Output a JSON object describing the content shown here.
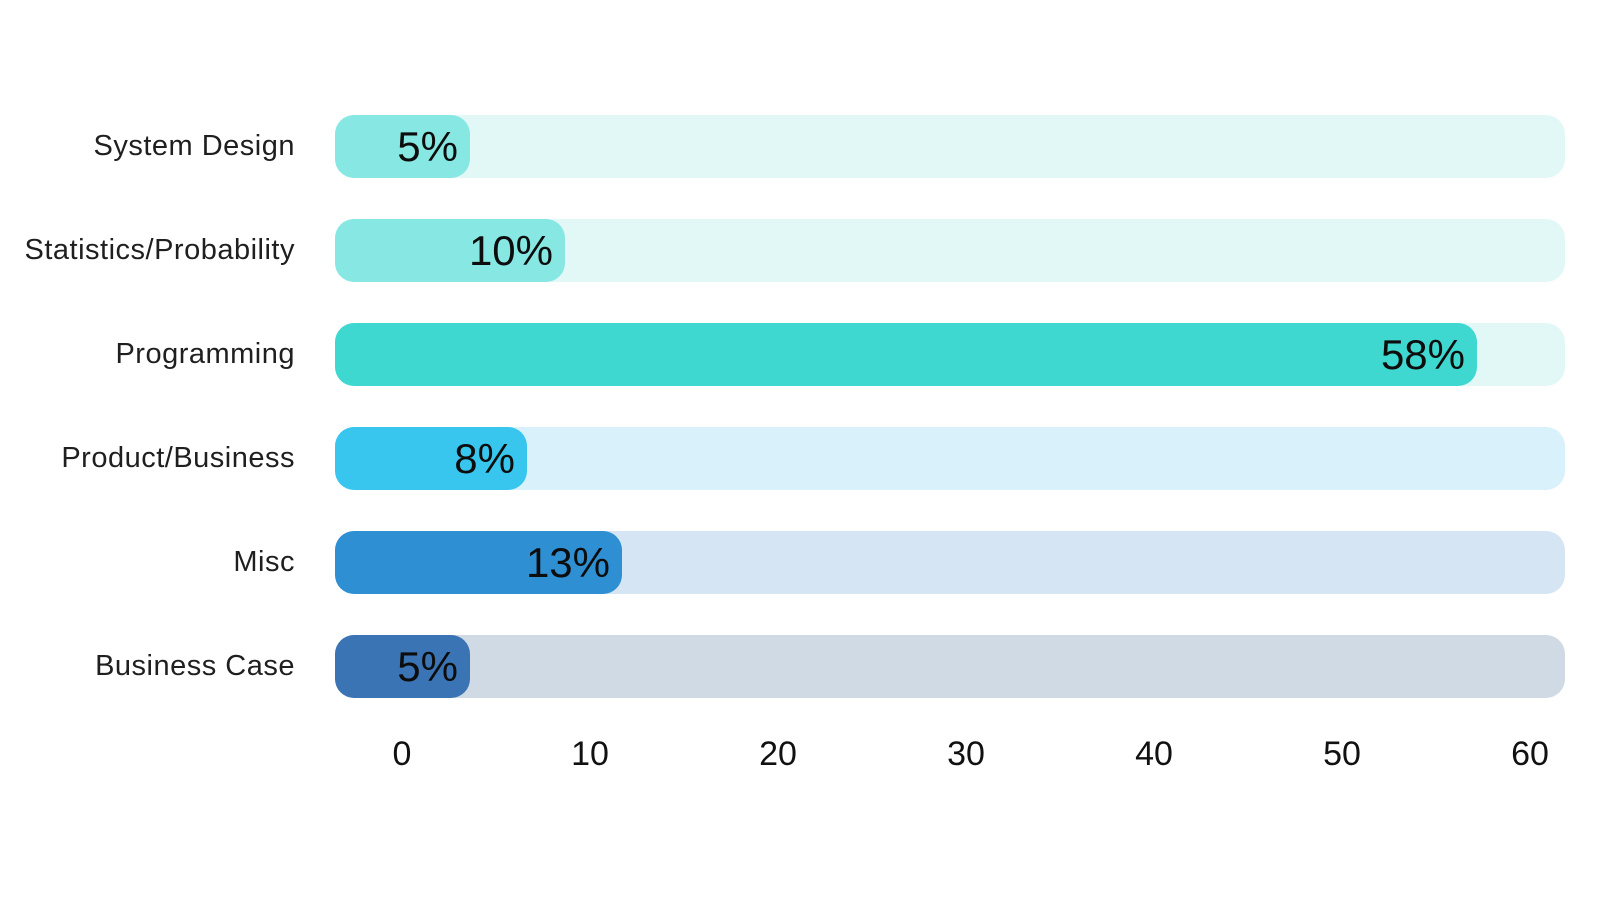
{
  "chart_data": {
    "type": "bar",
    "orientation": "horizontal",
    "title": "",
    "xlabel": "",
    "ylabel": "",
    "xlim": [
      0,
      60
    ],
    "x_ticks": [
      "0",
      "10",
      "20",
      "30",
      "40",
      "50",
      "60"
    ],
    "grid": false,
    "legend": false,
    "categories": [
      "System Design",
      "Statistics/Probability",
      "Programming",
      "Product/Business",
      "Misc",
      "Business Case"
    ],
    "values": [
      5,
      10,
      58,
      8,
      13,
      5
    ],
    "rows": [
      {
        "label": "System Design",
        "value": 5,
        "value_label": "5%",
        "fill_color": "#87E8E3",
        "track_color": "#E2F8F6"
      },
      {
        "label": "Statistics/Probability",
        "value": 10,
        "value_label": "10%",
        "fill_color": "#87E8E3",
        "track_color": "#E2F8F6"
      },
      {
        "label": "Programming",
        "value": 58,
        "value_label": "58%",
        "fill_color": "#3ED8D0",
        "track_color": "#E2F8F6"
      },
      {
        "label": "Product/Business",
        "value": 8,
        "value_label": "8%",
        "fill_color": "#38C6EE",
        "track_color": "#D8F1FA"
      },
      {
        "label": "Misc",
        "value": 13,
        "value_label": "13%",
        "fill_color": "#2E8FD3",
        "track_color": "#D5E5F4"
      },
      {
        "label": "Business Case",
        "value": 5,
        "value_label": "5%",
        "fill_color": "#3B74B4",
        "track_color": "#D0DAE5"
      }
    ],
    "colors": {
      "background": "#ffffff",
      "label_text": "#1f1f1f",
      "value_text": "#0d0d0d",
      "axis_text": "#111111"
    }
  }
}
